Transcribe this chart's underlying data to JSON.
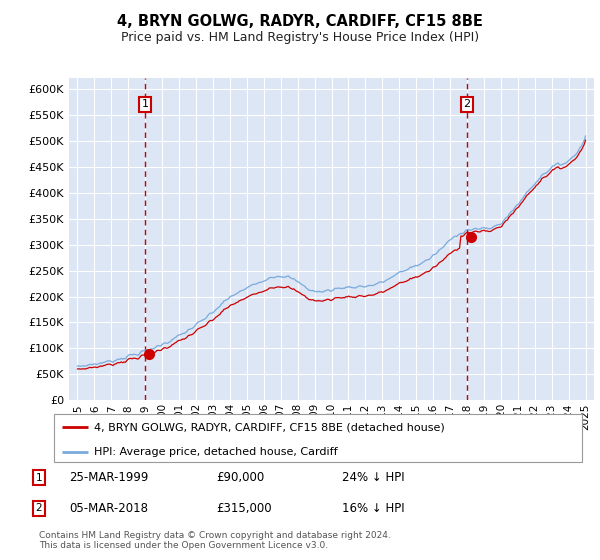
{
  "title": "4, BRYN GOLWG, RADYR, CARDIFF, CF15 8BE",
  "subtitle": "Price paid vs. HM Land Registry's House Price Index (HPI)",
  "plot_bg_color": "#dce6f5",
  "grid_color": "#ffffff",
  "red_line_color": "#cc0000",
  "blue_line_color": "#7aaadd",
  "sale1_date": "25-MAR-1999",
  "sale1_price": "£90,000",
  "sale1_info": "24% ↓ HPI",
  "sale2_date": "05-MAR-2018",
  "sale2_price": "£315,000",
  "sale2_info": "16% ↓ HPI",
  "legend_label1": "4, BRYN GOLWG, RADYR, CARDIFF, CF15 8BE (detached house)",
  "legend_label2": "HPI: Average price, detached house, Cardiff",
  "footer": "Contains HM Land Registry data © Crown copyright and database right 2024.\nThis data is licensed under the Open Government Licence v3.0.",
  "ylim_min": 0,
  "ylim_max": 620000,
  "yticks": [
    0,
    50000,
    100000,
    150000,
    200000,
    250000,
    300000,
    350000,
    400000,
    450000,
    500000,
    550000,
    600000
  ],
  "x_years": [
    1995,
    1996,
    1997,
    1998,
    1999,
    2000,
    2001,
    2002,
    2003,
    2004,
    2005,
    2006,
    2007,
    2008,
    2009,
    2010,
    2011,
    2012,
    2013,
    2014,
    2015,
    2016,
    2017,
    2018,
    2019,
    2020,
    2021,
    2022,
    2023,
    2024,
    2025
  ],
  "sale1_idx": 4,
  "sale1_value": 90000,
  "sale2_idx": 23,
  "sale2_value": 315000
}
